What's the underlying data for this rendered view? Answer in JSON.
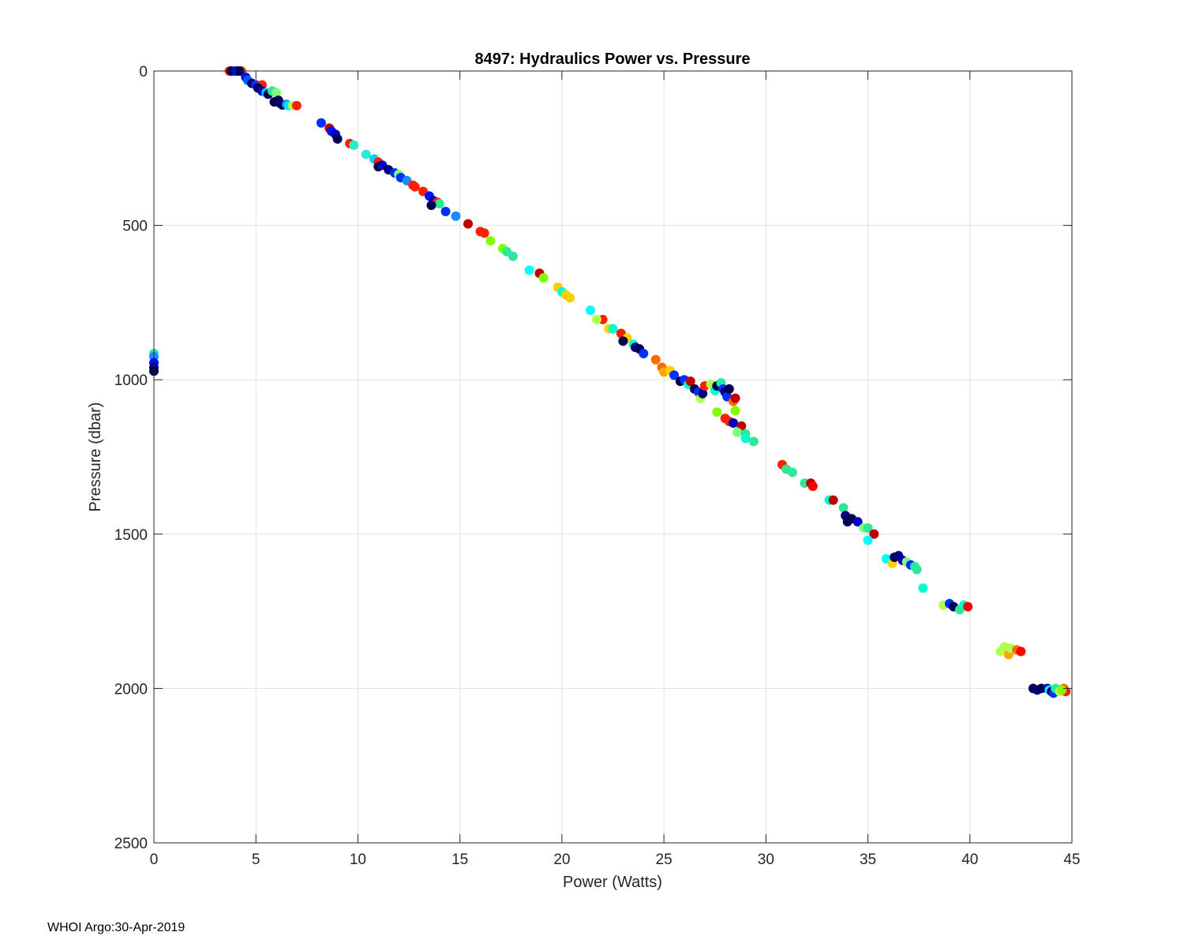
{
  "chart_data": {
    "type": "scatter",
    "title": "8497: Hydraulics Power vs. Pressure",
    "xlabel": "Power (Watts)",
    "ylabel": "Pressure (dbar)",
    "xlim": [
      0,
      45
    ],
    "ylim": [
      0,
      2500
    ],
    "y_reversed": true,
    "grid": true,
    "xticks": [
      0,
      5,
      10,
      15,
      20,
      25,
      30,
      35,
      40,
      45
    ],
    "yticks": [
      0,
      500,
      1000,
      1500,
      2000,
      2500
    ],
    "x_tick_labels": [
      "0",
      "5",
      "10",
      "15",
      "20",
      "25",
      "30",
      "35",
      "40",
      "45"
    ],
    "y_tick_labels": [
      "0",
      "500",
      "1000",
      "1500",
      "2000",
      "2500"
    ],
    "colormap": "jet (by profile)",
    "points": [
      {
        "x": 0.0,
        "y": 915,
        "c": "#2ee89a"
      },
      {
        "x": 0.0,
        "y": 925,
        "c": "#1a8cff"
      },
      {
        "x": 0.0,
        "y": 945,
        "c": "#0010ff"
      },
      {
        "x": 0.0,
        "y": 960,
        "c": "#000a8c"
      },
      {
        "x": 0.0,
        "y": 972,
        "c": "#000050"
      },
      {
        "x": 3.7,
        "y": 0,
        "c": "#ff2000"
      },
      {
        "x": 3.8,
        "y": 0,
        "c": "#000050"
      },
      {
        "x": 4.0,
        "y": 0,
        "c": "#0000b0"
      },
      {
        "x": 4.1,
        "y": 0,
        "c": "#0010ff"
      },
      {
        "x": 4.3,
        "y": 0,
        "c": "#ff6a00"
      },
      {
        "x": 4.2,
        "y": 0,
        "c": "#000050"
      },
      {
        "x": 4.5,
        "y": 20,
        "c": "#0010ff"
      },
      {
        "x": 4.6,
        "y": 30,
        "c": "#0060ff"
      },
      {
        "x": 4.8,
        "y": 40,
        "c": "#000080"
      },
      {
        "x": 5.0,
        "y": 45,
        "c": "#0030ff"
      },
      {
        "x": 5.3,
        "y": 45,
        "c": "#ff2000"
      },
      {
        "x": 5.1,
        "y": 55,
        "c": "#000050"
      },
      {
        "x": 5.3,
        "y": 65,
        "c": "#0000c0"
      },
      {
        "x": 5.5,
        "y": 70,
        "c": "#00cfff"
      },
      {
        "x": 5.6,
        "y": 75,
        "c": "#000050"
      },
      {
        "x": 5.8,
        "y": 65,
        "c": "#2ee89a"
      },
      {
        "x": 6.0,
        "y": 70,
        "c": "#7fff7f"
      },
      {
        "x": 5.9,
        "y": 100,
        "c": "#000050"
      },
      {
        "x": 6.1,
        "y": 95,
        "c": "#000050"
      },
      {
        "x": 6.2,
        "y": 105,
        "c": "#000080"
      },
      {
        "x": 6.3,
        "y": 110,
        "c": "#000050"
      },
      {
        "x": 6.5,
        "y": 108,
        "c": "#1a8cff"
      },
      {
        "x": 6.6,
        "y": 112,
        "c": "#00e0ff"
      },
      {
        "x": 6.8,
        "y": 112,
        "c": "#b0ff4f"
      },
      {
        "x": 7.0,
        "y": 112,
        "c": "#ff2000"
      },
      {
        "x": 8.2,
        "y": 168,
        "c": "#0030ff"
      },
      {
        "x": 8.6,
        "y": 185,
        "c": "#c00000"
      },
      {
        "x": 8.7,
        "y": 195,
        "c": "#0010ff"
      },
      {
        "x": 8.9,
        "y": 205,
        "c": "#0000c0"
      },
      {
        "x": 9.0,
        "y": 220,
        "c": "#000050"
      },
      {
        "x": 9.6,
        "y": 235,
        "c": "#ff2000"
      },
      {
        "x": 9.8,
        "y": 240,
        "c": "#2ee8d0"
      },
      {
        "x": 10.4,
        "y": 270,
        "c": "#2ee8d0"
      },
      {
        "x": 10.8,
        "y": 285,
        "c": "#00cfff"
      },
      {
        "x": 11.0,
        "y": 295,
        "c": "#ff2000"
      },
      {
        "x": 11.0,
        "y": 310,
        "c": "#000050"
      },
      {
        "x": 11.2,
        "y": 305,
        "c": "#0000c0"
      },
      {
        "x": 11.5,
        "y": 320,
        "c": "#000080"
      },
      {
        "x": 11.8,
        "y": 330,
        "c": "#0030ff"
      },
      {
        "x": 12.0,
        "y": 335,
        "c": "#7fff7f"
      },
      {
        "x": 12.1,
        "y": 345,
        "c": "#0030ff"
      },
      {
        "x": 12.4,
        "y": 355,
        "c": "#1a8cff"
      },
      {
        "x": 12.7,
        "y": 370,
        "c": "#ff2000"
      },
      {
        "x": 12.8,
        "y": 375,
        "c": "#ff2000"
      },
      {
        "x": 13.2,
        "y": 390,
        "c": "#ff2000"
      },
      {
        "x": 13.5,
        "y": 405,
        "c": "#0010ff"
      },
      {
        "x": 13.7,
        "y": 420,
        "c": "#0000c0"
      },
      {
        "x": 13.9,
        "y": 425,
        "c": "#ff2000"
      },
      {
        "x": 14.0,
        "y": 430,
        "c": "#2ee89a"
      },
      {
        "x": 13.6,
        "y": 435,
        "c": "#000050"
      },
      {
        "x": 14.3,
        "y": 455,
        "c": "#0030ff"
      },
      {
        "x": 14.8,
        "y": 470,
        "c": "#1a8cff"
      },
      {
        "x": 15.4,
        "y": 495,
        "c": "#c00000"
      },
      {
        "x": 16.0,
        "y": 520,
        "c": "#ff2000"
      },
      {
        "x": 16.2,
        "y": 525,
        "c": "#ff2000"
      },
      {
        "x": 16.5,
        "y": 550,
        "c": "#7fff00"
      },
      {
        "x": 17.1,
        "y": 575,
        "c": "#7fff00"
      },
      {
        "x": 17.3,
        "y": 585,
        "c": "#2ee89a"
      },
      {
        "x": 17.6,
        "y": 600,
        "c": "#2ee89a"
      },
      {
        "x": 18.4,
        "y": 645,
        "c": "#00ffff"
      },
      {
        "x": 18.9,
        "y": 655,
        "c": "#c00000"
      },
      {
        "x": 19.1,
        "y": 670,
        "c": "#7fff00"
      },
      {
        "x": 19.8,
        "y": 700,
        "c": "#ffd000"
      },
      {
        "x": 20.0,
        "y": 715,
        "c": "#00ffcc"
      },
      {
        "x": 20.2,
        "y": 725,
        "c": "#ffd000"
      },
      {
        "x": 20.4,
        "y": 735,
        "c": "#ffd000"
      },
      {
        "x": 21.4,
        "y": 775,
        "c": "#00ffff"
      },
      {
        "x": 22.0,
        "y": 805,
        "c": "#ff2000"
      },
      {
        "x": 21.7,
        "y": 805,
        "c": "#b0ff4f"
      },
      {
        "x": 22.3,
        "y": 835,
        "c": "#ffd000"
      },
      {
        "x": 22.5,
        "y": 835,
        "c": "#00ffcc"
      },
      {
        "x": 22.9,
        "y": 850,
        "c": "#ff2000"
      },
      {
        "x": 23.2,
        "y": 865,
        "c": "#ffd000"
      },
      {
        "x": 23.0,
        "y": 875,
        "c": "#000050"
      },
      {
        "x": 23.5,
        "y": 885,
        "c": "#00ffcc"
      },
      {
        "x": 23.6,
        "y": 895,
        "c": "#000080"
      },
      {
        "x": 23.8,
        "y": 900,
        "c": "#000050"
      },
      {
        "x": 24.0,
        "y": 915,
        "c": "#0030ff"
      },
      {
        "x": 24.6,
        "y": 935,
        "c": "#ff6a00"
      },
      {
        "x": 24.9,
        "y": 960,
        "c": "#ff6a00"
      },
      {
        "x": 25.0,
        "y": 975,
        "c": "#ffa500"
      },
      {
        "x": 25.3,
        "y": 970,
        "c": "#ffd000"
      },
      {
        "x": 25.5,
        "y": 985,
        "c": "#0030ff"
      },
      {
        "x": 25.8,
        "y": 1005,
        "c": "#000050"
      },
      {
        "x": 26.0,
        "y": 1000,
        "c": "#0030ff"
      },
      {
        "x": 26.2,
        "y": 1015,
        "c": "#00ffcc"
      },
      {
        "x": 26.3,
        "y": 1005,
        "c": "#c00000"
      },
      {
        "x": 26.5,
        "y": 1030,
        "c": "#000050"
      },
      {
        "x": 26.7,
        "y": 1040,
        "c": "#0030ff"
      },
      {
        "x": 26.8,
        "y": 1060,
        "c": "#b0ff4f"
      },
      {
        "x": 26.9,
        "y": 1045,
        "c": "#000080"
      },
      {
        "x": 27.0,
        "y": 1020,
        "c": "#ff2000"
      },
      {
        "x": 27.3,
        "y": 1015,
        "c": "#b0ff4f"
      },
      {
        "x": 27.5,
        "y": 1035,
        "c": "#00ffcc"
      },
      {
        "x": 27.6,
        "y": 1020,
        "c": "#000050"
      },
      {
        "x": 27.8,
        "y": 1010,
        "c": "#2ee89a"
      },
      {
        "x": 27.9,
        "y": 1030,
        "c": "#0030ff"
      },
      {
        "x": 28.0,
        "y": 1040,
        "c": "#000080"
      },
      {
        "x": 28.1,
        "y": 1055,
        "c": "#0030ff"
      },
      {
        "x": 28.2,
        "y": 1030,
        "c": "#000050"
      },
      {
        "x": 28.4,
        "y": 1070,
        "c": "#ff6a00"
      },
      {
        "x": 28.5,
        "y": 1060,
        "c": "#c00000"
      },
      {
        "x": 28.5,
        "y": 1100,
        "c": "#7fff00"
      },
      {
        "x": 27.6,
        "y": 1105,
        "c": "#7fff00"
      },
      {
        "x": 28.0,
        "y": 1125,
        "c": "#ff2000"
      },
      {
        "x": 28.2,
        "y": 1135,
        "c": "#ff2000"
      },
      {
        "x": 28.4,
        "y": 1140,
        "c": "#0000c0"
      },
      {
        "x": 28.8,
        "y": 1150,
        "c": "#c00000"
      },
      {
        "x": 28.6,
        "y": 1170,
        "c": "#7fff7f"
      },
      {
        "x": 29.0,
        "y": 1175,
        "c": "#2ee89a"
      },
      {
        "x": 29.0,
        "y": 1190,
        "c": "#00ffcc"
      },
      {
        "x": 29.4,
        "y": 1200,
        "c": "#2ee89a"
      },
      {
        "x": 30.8,
        "y": 1275,
        "c": "#ff2000"
      },
      {
        "x": 31.0,
        "y": 1290,
        "c": "#2ee89a"
      },
      {
        "x": 31.3,
        "y": 1300,
        "c": "#2ee89a"
      },
      {
        "x": 31.9,
        "y": 1335,
        "c": "#2ee89a"
      },
      {
        "x": 32.2,
        "y": 1335,
        "c": "#c00000"
      },
      {
        "x": 32.3,
        "y": 1345,
        "c": "#ff0000"
      },
      {
        "x": 33.1,
        "y": 1390,
        "c": "#00ffcc"
      },
      {
        "x": 33.3,
        "y": 1390,
        "c": "#c00000"
      },
      {
        "x": 33.8,
        "y": 1415,
        "c": "#2ee89a"
      },
      {
        "x": 33.9,
        "y": 1440,
        "c": "#000080"
      },
      {
        "x": 34.0,
        "y": 1460,
        "c": "#000050"
      },
      {
        "x": 34.2,
        "y": 1450,
        "c": "#000050"
      },
      {
        "x": 34.5,
        "y": 1460,
        "c": "#0000c0"
      },
      {
        "x": 34.8,
        "y": 1480,
        "c": "#7fff7f"
      },
      {
        "x": 35.0,
        "y": 1480,
        "c": "#2ee89a"
      },
      {
        "x": 35.3,
        "y": 1500,
        "c": "#c00000"
      },
      {
        "x": 35.0,
        "y": 1520,
        "c": "#00ffff"
      },
      {
        "x": 35.9,
        "y": 1580,
        "c": "#00ffff"
      },
      {
        "x": 36.2,
        "y": 1595,
        "c": "#ffd000"
      },
      {
        "x": 36.3,
        "y": 1575,
        "c": "#000050"
      },
      {
        "x": 36.5,
        "y": 1570,
        "c": "#000080"
      },
      {
        "x": 36.7,
        "y": 1585,
        "c": "#0000c0"
      },
      {
        "x": 36.9,
        "y": 1590,
        "c": "#7fff7f"
      },
      {
        "x": 37.1,
        "y": 1600,
        "c": "#0030ff"
      },
      {
        "x": 37.3,
        "y": 1605,
        "c": "#2ee89a"
      },
      {
        "x": 37.4,
        "y": 1615,
        "c": "#2ee89a"
      },
      {
        "x": 37.7,
        "y": 1675,
        "c": "#00ffcc"
      },
      {
        "x": 38.7,
        "y": 1730,
        "c": "#b0ff4f"
      },
      {
        "x": 39.0,
        "y": 1725,
        "c": "#0030ff"
      },
      {
        "x": 39.2,
        "y": 1735,
        "c": "#000050"
      },
      {
        "x": 39.5,
        "y": 1745,
        "c": "#2ee89a"
      },
      {
        "x": 39.7,
        "y": 1730,
        "c": "#00ffcc"
      },
      {
        "x": 39.9,
        "y": 1735,
        "c": "#ff0000"
      },
      {
        "x": 41.5,
        "y": 1880,
        "c": "#b0ff4f"
      },
      {
        "x": 41.7,
        "y": 1865,
        "c": "#b0ff4f"
      },
      {
        "x": 41.9,
        "y": 1890,
        "c": "#ffa500"
      },
      {
        "x": 42.0,
        "y": 1870,
        "c": "#b0ff4f"
      },
      {
        "x": 42.3,
        "y": 1875,
        "c": "#ff6a00"
      },
      {
        "x": 42.5,
        "y": 1880,
        "c": "#ff0000"
      },
      {
        "x": 43.1,
        "y": 2000,
        "c": "#000050"
      },
      {
        "x": 43.3,
        "y": 2005,
        "c": "#000080"
      },
      {
        "x": 43.5,
        "y": 2000,
        "c": "#000050"
      },
      {
        "x": 43.8,
        "y": 2000,
        "c": "#0000c0"
      },
      {
        "x": 43.9,
        "y": 2005,
        "c": "#00ffff"
      },
      {
        "x": 44.0,
        "y": 2010,
        "c": "#000050"
      },
      {
        "x": 44.1,
        "y": 2015,
        "c": "#0030ff"
      },
      {
        "x": 44.2,
        "y": 2000,
        "c": "#2ee89a"
      },
      {
        "x": 44.4,
        "y": 2010,
        "c": "#b0ff4f"
      },
      {
        "x": 44.6,
        "y": 2000,
        "c": "#ff6a00"
      },
      {
        "x": 44.7,
        "y": 2010,
        "c": "#ff2000"
      },
      {
        "x": 44.5,
        "y": 2005,
        "c": "#7fff00"
      }
    ]
  },
  "footer": {
    "text": "WHOI Argo:30-Apr-2019"
  }
}
